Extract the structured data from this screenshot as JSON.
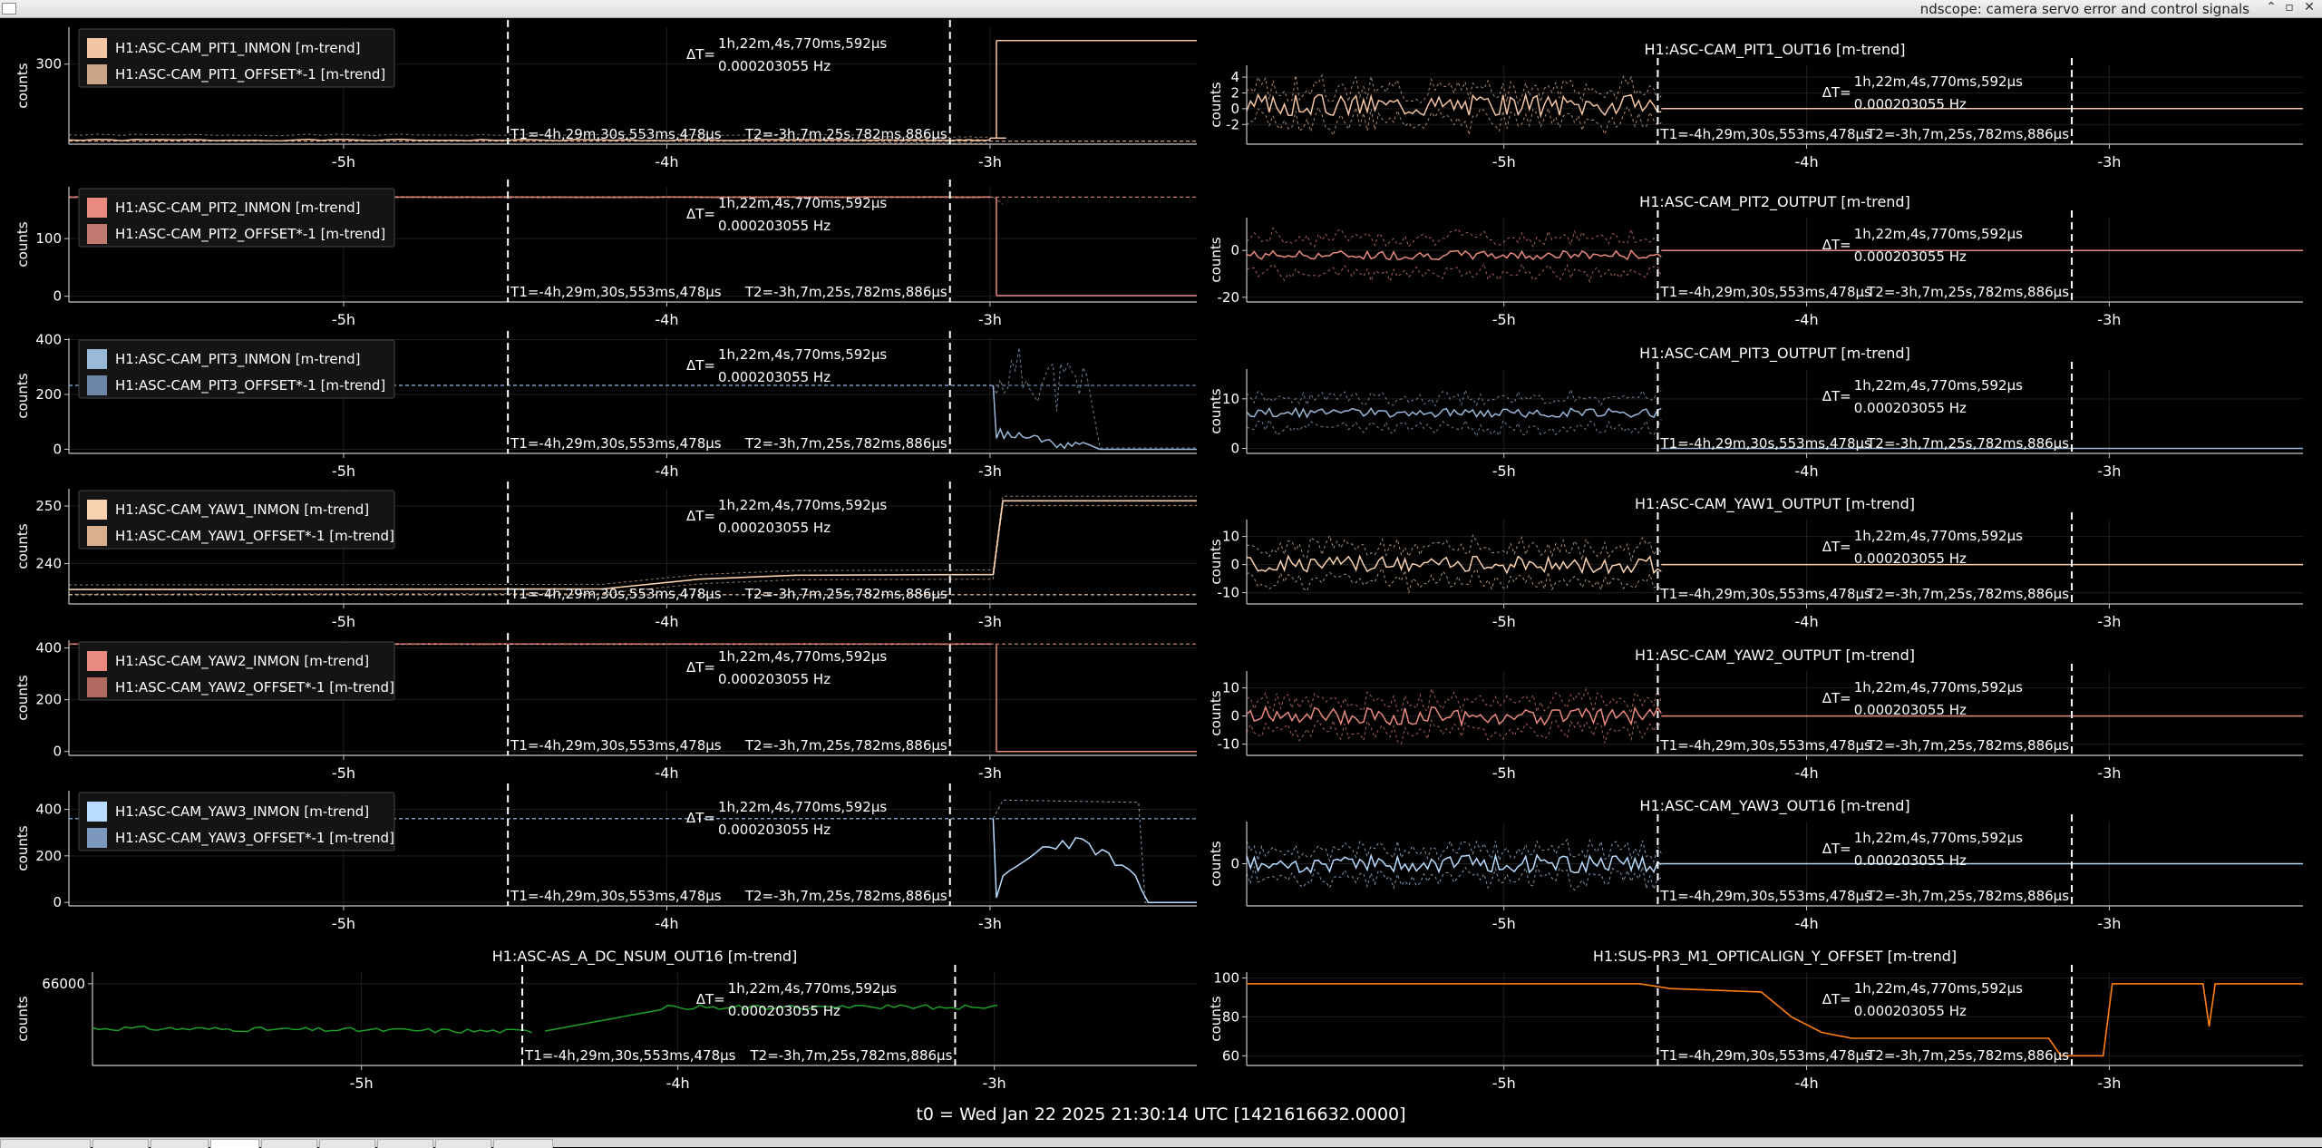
{
  "window": {
    "title": "ndscope: camera servo error and control signals",
    "min_glyph": "⌃",
    "max_glyph": "▫",
    "close_glyph": "✕"
  },
  "footer_text": "t0 = Wed Jan 22 2025 21:30:14 UTC [1421616632.0000]",
  "cursors": {
    "delta_label": "ΔT=",
    "delta_time": "1h,22m,4s,770ms,592μs",
    "delta_freq": "0.000203055 Hz",
    "t1_label": "T1=-4h,29m,30s,553ms,478μs",
    "t2_label": "T2=-3h,7m,25s,782ms,886μs"
  },
  "colors": {
    "background": "#000000",
    "axis": "#c8c8c8",
    "grid": "#1e1e1e",
    "cursor": "#ffffff",
    "legend_bg": "#141414"
  },
  "chart_data": [
    {
      "type": "line",
      "id": "L1",
      "title": "",
      "ylabel": "counts",
      "xlim": [
        -5.85,
        -2.36
      ],
      "ylim": [
        222,
        336
      ],
      "yticks": [
        300
      ],
      "xticks": [
        -5,
        -4,
        -3
      ],
      "xticklabels": [
        "-5h",
        "-4h",
        "-3h"
      ],
      "legend": "top-left",
      "series": [
        {
          "name": "H1:ASC-CAM_PIT1_INMON [m-trend]",
          "color": "#f4c5a4",
          "kind": "flat_step",
          "segments": [
            [
              -5.85,
              -3.38,
              226,
              5
            ],
            [
              -3.38,
              -3.0,
              226,
              3
            ],
            [
              -3.0,
              -2.95,
              228,
              0
            ],
            [
              -2.98,
              -2.36,
              323,
              0
            ]
          ]
        },
        {
          "name": "H1:ASC-CAM_PIT1_OFFSET*-1 [m-trend]",
          "color": "#c9a488",
          "kind": "flat",
          "segments": [
            [
              -5.85,
              -2.36,
              225,
              0
            ]
          ]
        }
      ]
    },
    {
      "type": "line",
      "id": "R1",
      "title": "H1:ASC-CAM_PIT1_OUT16 [m-trend]",
      "ylabel": "counts",
      "xlim": [
        -5.85,
        -2.36
      ],
      "ylim": [
        -4.5,
        5.5
      ],
      "yticks": [
        -2,
        0,
        2,
        4
      ],
      "xticks": [
        -5,
        -4,
        -3
      ],
      "xticklabels": [
        "-5h",
        "-4h",
        "-3h"
      ],
      "legend": "none",
      "series": [
        {
          "name": "",
          "color": "#f4c5a4",
          "kind": "noise",
          "mean": 0.5,
          "amp": 1.4,
          "env": 2.6,
          "start": -5.85,
          "end": -4.48,
          "after": 0.0,
          "seed": 3
        }
      ]
    },
    {
      "type": "line",
      "id": "L2",
      "title": "",
      "ylabel": "counts",
      "xlim": [
        -5.85,
        -2.36
      ],
      "ylim": [
        -10,
        190
      ],
      "yticks": [
        0,
        100
      ],
      "xticks": [
        -5,
        -4,
        -3
      ],
      "xticklabels": [
        "-5h",
        "-4h",
        "-3h"
      ],
      "legend": "top-left",
      "series": [
        {
          "name": "H1:ASC-CAM_PIT2_INMON [m-trend]",
          "color": "#e98a80",
          "kind": "flat_step",
          "segments": [
            [
              -5.85,
              -3.0,
              172,
              1
            ],
            [
              -2.98,
              -2.36,
              1,
              0
            ]
          ],
          "spike": [
            [
              -2.99,
              172,
              1
            ],
            [
              -2.96,
              160,
              30
            ]
          ]
        },
        {
          "name": "H1:ASC-CAM_PIT2_OFFSET*-1 [m-trend]",
          "color": "#c07a70",
          "kind": "flat",
          "segments": [
            [
              -5.85,
              -2.36,
              172,
              0
            ]
          ]
        }
      ]
    },
    {
      "type": "line",
      "id": "R2",
      "title": "H1:ASC-CAM_PIT2_OUTPUT [m-trend]",
      "ylabel": "counts",
      "xlim": [
        -5.85,
        -2.36
      ],
      "ylim": [
        -22,
        14
      ],
      "yticks": [
        -20,
        0
      ],
      "xticks": [
        -5,
        -4,
        -3
      ],
      "xticklabels": [
        "-5h",
        "-4h",
        "-3h"
      ],
      "legend": "none",
      "series": [
        {
          "name": "",
          "color": "#e98a80",
          "kind": "noise",
          "mean": -2.0,
          "amp": 2.0,
          "env": 10.0,
          "start": -5.85,
          "end": -4.48,
          "after": 0.0,
          "seed": 7
        }
      ]
    },
    {
      "type": "line",
      "id": "L3",
      "title": "",
      "ylabel": "counts",
      "xlim": [
        -5.85,
        -2.36
      ],
      "ylim": [
        -15,
        405
      ],
      "yticks": [
        0,
        200,
        400
      ],
      "xticks": [
        -5,
        -4,
        -3
      ],
      "xticklabels": [
        "-5h",
        "-4h",
        "-3h"
      ],
      "legend": "top-left",
      "series": [
        {
          "name": "H1:ASC-CAM_PIT3_INMON [m-trend]",
          "color": "#9ab8d8",
          "kind": "burst",
          "before": 233,
          "start": -2.99,
          "end": -2.36,
          "peak": 400,
          "low": 0,
          "seed": 11
        },
        {
          "name": "H1:ASC-CAM_PIT3_OFFSET*-1 [m-trend]",
          "color": "#6d86a6",
          "kind": "flat",
          "segments": [
            [
              -5.85,
              -2.36,
              233,
              0
            ]
          ]
        }
      ]
    },
    {
      "type": "line",
      "id": "R3",
      "title": "H1:ASC-CAM_PIT3_OUTPUT [m-trend]",
      "ylabel": "counts",
      "xlim": [
        -5.85,
        -2.36
      ],
      "ylim": [
        -1,
        16
      ],
      "yticks": [
        0,
        10
      ],
      "xticks": [
        -5,
        -4,
        -3
      ],
      "xticklabels": [
        "-5h",
        "-4h",
        "-3h"
      ],
      "legend": "none",
      "series": [
        {
          "name": "",
          "color": "#9ab8d8",
          "kind": "noise",
          "mean": 7.2,
          "amp": 0.9,
          "env": 4.0,
          "start": -5.85,
          "end": -4.48,
          "after": 0.0,
          "seed": 13
        }
      ]
    },
    {
      "type": "line",
      "id": "L4",
      "title": "",
      "ylabel": "counts",
      "xlim": [
        -5.85,
        -2.36
      ],
      "ylim": [
        233,
        253
      ],
      "yticks": [
        240,
        250
      ],
      "xticks": [
        -5,
        -4,
        -3
      ],
      "xticklabels": [
        "-5h",
        "-4h",
        "-3h"
      ],
      "legend": "top-left",
      "series": [
        {
          "name": "H1:ASC-CAM_YAW1_INMON [m-trend]",
          "color": "#f8d2b0",
          "kind": "ramp",
          "points": [
            [
              -5.85,
              235.5
            ],
            [
              -4.2,
              235.6
            ],
            [
              -3.9,
              237.3
            ],
            [
              -3.6,
              238.0
            ],
            [
              -2.99,
              238.1
            ],
            [
              -2.96,
              250.9
            ],
            [
              -2.36,
              250.9
            ]
          ],
          "env": 0.8
        },
        {
          "name": "H1:ASC-CAM_YAW1_OFFSET*-1 [m-trend]",
          "color": "#d8b090",
          "kind": "flat",
          "segments": [
            [
              -5.85,
              -2.36,
              234.6,
              0
            ]
          ]
        }
      ]
    },
    {
      "type": "line",
      "id": "R4",
      "title": "H1:ASC-CAM_YAW1_OUTPUT [m-trend]",
      "ylabel": "counts",
      "xlim": [
        -5.85,
        -2.36
      ],
      "ylim": [
        -14,
        16
      ],
      "yticks": [
        -10,
        0,
        10
      ],
      "xticks": [
        -5,
        -4,
        -3
      ],
      "xticklabels": [
        "-5h",
        "-4h",
        "-3h"
      ],
      "legend": "none",
      "series": [
        {
          "name": "",
          "color": "#f8d2b0",
          "kind": "noise",
          "mean": 0.0,
          "amp": 3.0,
          "env": 8.0,
          "start": -5.85,
          "end": -4.48,
          "after": 0.0,
          "seed": 17
        }
      ]
    },
    {
      "type": "line",
      "id": "L5",
      "title": "",
      "ylabel": "counts",
      "xlim": [
        -5.85,
        -2.36
      ],
      "ylim": [
        -15,
        430
      ],
      "yticks": [
        0,
        200,
        400
      ],
      "xticks": [
        -5,
        -4,
        -3
      ],
      "xticklabels": [
        "-5h",
        "-4h",
        "-3h"
      ],
      "legend": "top-left",
      "series": [
        {
          "name": "H1:ASC-CAM_YAW2_INMON [m-trend]",
          "color": "#e98a80",
          "kind": "flat_step",
          "segments": [
            [
              -5.85,
              -2.99,
              415,
              2
            ],
            [
              -2.98,
              -2.36,
              0,
              0
            ]
          ]
        },
        {
          "name": "H1:ASC-CAM_YAW2_OFFSET*-1 [m-trend]",
          "color": "#b06a60",
          "kind": "flat",
          "segments": [
            [
              -5.85,
              -2.36,
              415,
              0
            ]
          ]
        }
      ]
    },
    {
      "type": "line",
      "id": "R5",
      "title": "H1:ASC-CAM_YAW2_OUTPUT [m-trend]",
      "ylabel": "counts",
      "xlim": [
        -5.85,
        -2.36
      ],
      "ylim": [
        -14,
        16
      ],
      "yticks": [
        -10,
        0,
        10
      ],
      "xticks": [
        -5,
        -4,
        -3
      ],
      "xticklabels": [
        "-5h",
        "-4h",
        "-3h"
      ],
      "legend": "none",
      "series": [
        {
          "name": "",
          "color": "#e98a80",
          "kind": "noise",
          "mean": 0.0,
          "amp": 3.2,
          "env": 7.0,
          "start": -5.85,
          "end": -4.48,
          "after": 0.0,
          "seed": 19
        }
      ]
    },
    {
      "type": "line",
      "id": "L6",
      "title": "",
      "ylabel": "counts",
      "xlim": [
        -5.85,
        -2.36
      ],
      "ylim": [
        -15,
        480
      ],
      "yticks": [
        0,
        200,
        400
      ],
      "xticks": [
        -5,
        -4,
        -3
      ],
      "xticklabels": [
        "-5h",
        "-4h",
        "-3h"
      ],
      "legend": "top-left",
      "series": [
        {
          "name": "H1:ASC-CAM_YAW3_INMON [m-trend]",
          "color": "#b7dcff",
          "kind": "burst2",
          "before": 360,
          "start": -2.99,
          "end": -2.36,
          "seed": 23
        },
        {
          "name": "H1:ASC-CAM_YAW3_OFFSET*-1 [m-trend]",
          "color": "#7c98bc",
          "kind": "flat",
          "segments": [
            [
              -5.85,
              -2.36,
              360,
              0
            ]
          ]
        }
      ]
    },
    {
      "type": "line",
      "id": "R6",
      "title": "H1:ASC-CAM_YAW3_OUT16 [m-trend]",
      "ylabel": "counts",
      "xlim": [
        -5.85,
        -2.36
      ],
      "ylim": [
        -14,
        14
      ],
      "yticks": [
        0
      ],
      "xticks": [
        -5,
        -4,
        -3
      ],
      "xticklabels": [
        "-5h",
        "-4h",
        "-3h"
      ],
      "legend": "none",
      "series": [
        {
          "name": "",
          "color": "#b7dcff",
          "kind": "noise",
          "mean": 0.0,
          "amp": 3.0,
          "env": 6.0,
          "start": -5.85,
          "end": -4.48,
          "after": 0.0,
          "seed": 29
        }
      ]
    },
    {
      "type": "line",
      "id": "L7",
      "title": "H1:ASC-AS_A_DC_NSUM_OUT16 [m-trend]",
      "ylabel": "counts",
      "xlim": [
        -5.85,
        -2.36
      ],
      "ylim": [
        65300,
        66100
      ],
      "yticks": [
        66000
      ],
      "xticks": [
        -5,
        -4,
        -3
      ],
      "xticklabels": [
        "-5h",
        "-4h",
        "-3h"
      ],
      "legend": "none",
      "series": [
        {
          "name": "",
          "color": "#1e9e2a",
          "kind": "green",
          "seed": 31
        }
      ]
    },
    {
      "type": "line",
      "id": "R7",
      "title": "H1:SUS-PR3_M1_OPTICALIGN_Y_OFFSET [m-trend]",
      "ylabel": "counts",
      "xlim": [
        -5.85,
        -2.36
      ],
      "ylim": [
        55,
        103
      ],
      "yticks": [
        60,
        80,
        100
      ],
      "xticks": [
        -5,
        -4,
        -3
      ],
      "xticklabels": [
        "-5h",
        "-4h",
        "-3h"
      ],
      "legend": "none",
      "series": [
        {
          "name": "",
          "color": "#ff7f0e",
          "kind": "ramp",
          "points": [
            [
              -5.85,
              97.0
            ],
            [
              -4.55,
              97.0
            ],
            [
              -4.45,
              94.5
            ],
            [
              -4.15,
              92.8
            ],
            [
              -4.05,
              80.0
            ],
            [
              -3.95,
              72.0
            ],
            [
              -3.85,
              69.0
            ],
            [
              -3.2,
              69.0
            ],
            [
              -3.16,
              60.0
            ],
            [
              -3.02,
              60.0
            ],
            [
              -2.99,
              97.0
            ],
            [
              -2.69,
              97.0
            ],
            [
              -2.67,
              75.0
            ],
            [
              -2.65,
              97.0
            ],
            [
              -2.36,
              97.0
            ]
          ],
          "env": 0.0
        }
      ]
    }
  ]
}
